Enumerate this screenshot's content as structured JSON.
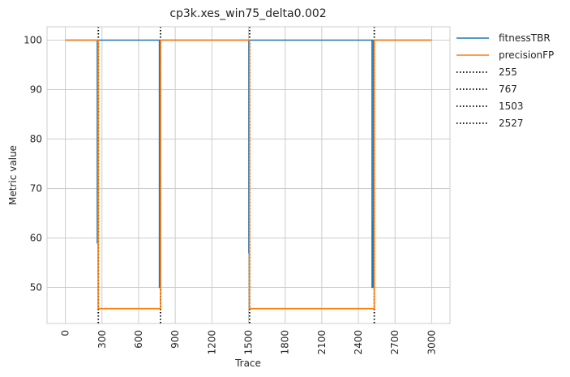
{
  "chart_data": {
    "type": "line",
    "title": "cp3k.xes_win75_delta0.002",
    "xlabel": "Trace",
    "ylabel": "Metric value",
    "xlim": [
      -150,
      3150
    ],
    "ylim": [
      42.7,
      102.7
    ],
    "xticks": [
      0,
      300,
      600,
      900,
      1200,
      1500,
      1800,
      2100,
      2400,
      2700,
      3000
    ],
    "yticks": [
      50,
      60,
      70,
      80,
      90,
      100
    ],
    "grid": true,
    "legend_position": "outside-right-top",
    "series": [
      {
        "name": "fitnessTBR",
        "color": "#1f77b4",
        "points": [
          [
            0,
            100
          ],
          [
            262,
            100
          ],
          [
            262,
            59
          ],
          [
            265,
            59
          ],
          [
            265,
            100
          ],
          [
            770,
            100
          ],
          [
            770,
            50
          ],
          [
            776,
            50
          ],
          [
            776,
            100
          ],
          [
            1503,
            100
          ],
          [
            1503,
            57
          ],
          [
            1506,
            57
          ],
          [
            1506,
            100
          ],
          [
            2512,
            100
          ],
          [
            2512,
            50
          ],
          [
            2515,
            50
          ],
          [
            2515,
            63.5
          ],
          [
            2519,
            63.5
          ],
          [
            2519,
            50
          ],
          [
            2523,
            50
          ],
          [
            2523,
            100
          ],
          [
            3000,
            100
          ]
        ]
      },
      {
        "name": "precisionFP",
        "color": "#ff7f0e",
        "points": [
          [
            0,
            100
          ],
          [
            268,
            100
          ],
          [
            268,
            45.7
          ],
          [
            780,
            45.7
          ],
          [
            780,
            100
          ],
          [
            1508,
            100
          ],
          [
            1508,
            45.7
          ],
          [
            2530,
            45.7
          ],
          [
            2530,
            100
          ],
          [
            3000,
            100
          ]
        ]
      }
    ],
    "vlines": [
      {
        "name": "255",
        "x": 270,
        "color": "#000000",
        "style": "dotted"
      },
      {
        "name": "767",
        "x": 779,
        "color": "#000000",
        "style": "dotted"
      },
      {
        "name": "1503",
        "x": 1509,
        "color": "#000000",
        "style": "dotted"
      },
      {
        "name": "2527",
        "x": 2530,
        "color": "#000000",
        "style": "dotted"
      }
    ]
  }
}
